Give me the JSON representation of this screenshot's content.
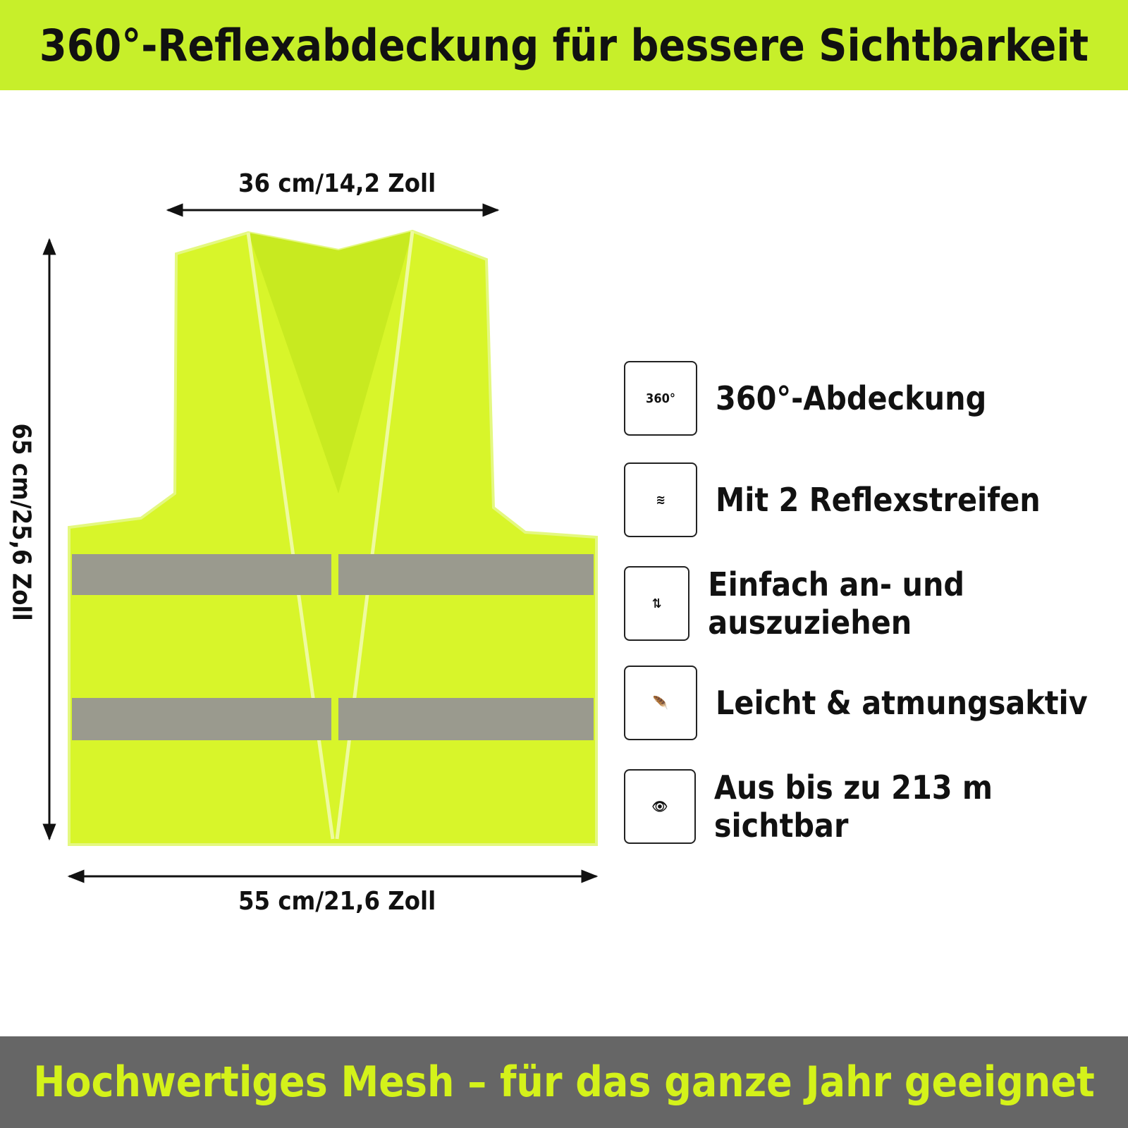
{
  "header": {
    "title": "360°-Reflexabdeckung für bessere Sichtbarkeit"
  },
  "dimensions": {
    "top": "36 cm/14,2 Zoll",
    "bottom": "55 cm/21,6 Zoll",
    "left": "65 cm/25,6 Zoll"
  },
  "features": [
    {
      "icon": "360°",
      "label": "360°-Abdeckung"
    },
    {
      "label": "Mit 2 Reflexstreifen"
    },
    {
      "label": "Einfach an- und auszuziehen"
    },
    {
      "label": "Leicht & atmungsaktiv"
    },
    {
      "label": "Aus bis zu 213 m sichtbar"
    }
  ],
  "footer": {
    "text": "Hochwertiges Mesh – für das ganze Jahr geeignet"
  }
}
